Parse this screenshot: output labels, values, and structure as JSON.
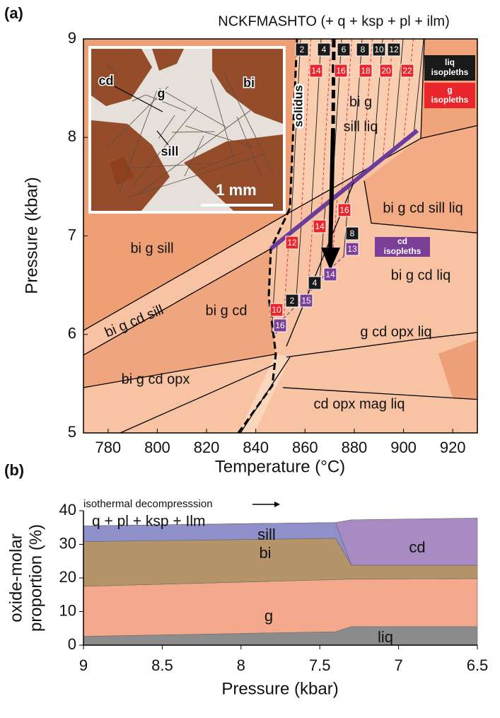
{
  "chart_data": [
    {
      "type": "phase-diagram",
      "panel_label": "(a)",
      "title": "NCKFMASHTO (+ q + ksp + pl + ilm)",
      "xlabel": "Temperature (°C)",
      "ylabel": "Pressure (kbar)",
      "xlim": [
        770,
        930
      ],
      "ylim": [
        5,
        9
      ],
      "xticks": [
        780,
        800,
        820,
        840,
        860,
        880,
        900,
        920
      ],
      "yticks": [
        5,
        6,
        7,
        8,
        9
      ],
      "fields": [
        "bi g sill",
        "bi g cd sill",
        "bi g cd",
        "bi g cd opx",
        "cd opx mag liq",
        "g cd opx liq",
        "bi g cd liq",
        "bi g cd sill liq",
        "bi g",
        "sill liq"
      ],
      "boundaries": [
        {
          "name": "solidus",
          "color": "#000000",
          "dashed": true,
          "x": [
            856.75,
            853.88,
            846.12,
            845.26,
            848.13,
            846.7,
            832.91
          ],
          "y": [
            9,
            7.28,
            6.87,
            6.38,
            5.8,
            5.48,
            5
          ]
        },
        {
          "color": "#000000",
          "x": [
            770,
            853.88,
            907.02
          ],
          "y": [
            6.04,
            7.24,
            7.99
          ]
        },
        {
          "color": "#000000",
          "x": [
            770,
            846.12
          ],
          "y": [
            5.79,
            6.87
          ]
        },
        {
          "color": "#6a3d9a",
          "x": [
            846.12,
            905.58
          ],
          "y": [
            6.87,
            8.07
          ]
        },
        {
          "color": "#000000",
          "x": [
            907.02,
            930
          ],
          "y": [
            7.99,
            8.12
          ]
        },
        {
          "color": "#000000",
          "x": [
            907.02,
            908.46
          ],
          "y": [
            7.99,
            9
          ]
        },
        {
          "color": "#000000",
          "x": [
            884.04,
            886.91,
            930
          ],
          "y": [
            7.56,
            7.13,
            7.03
          ]
        },
        {
          "color": "#000000",
          "x": [
            879.73,
            852.44
          ],
          "y": [
            7.54,
            5.88
          ]
        },
        {
          "color": "#000000",
          "x": [
            770,
            848.13
          ],
          "y": [
            5.46,
            5.8
          ]
        },
        {
          "color": "#000000",
          "x": [
            784.94,
            848.13
          ],
          "y": [
            5,
            5.7
          ]
        },
        {
          "color": "#000000",
          "x": [
            833.77,
            853.88
          ],
          "y": [
            5,
            5.77
          ]
        },
        {
          "color": "#000000",
          "x": [
            852.44,
            905.58,
            930
          ],
          "y": [
            5.77,
            5.95,
            6.02
          ]
        },
        {
          "color": "#000000",
          "x": [
            851.0,
            930
          ],
          "y": [
            5.46,
            5.34
          ]
        }
      ],
      "isopleths": [
        {
          "name": [
            "liq",
            "isopleths"
          ],
          "color": "#1a1a1a",
          "labels": [
            2,
            4,
            6,
            8,
            10,
            12,
            8,
            4,
            2
          ]
        },
        {
          "name": [
            "g",
            "isopleths"
          ],
          "color": "#e8262b",
          "labels": [
            14,
            16,
            18,
            20,
            22,
            16,
            14,
            12,
            10
          ]
        },
        {
          "name": [
            "cd",
            "isopleths"
          ],
          "color": "#7b3f98",
          "labels": [
            13,
            14,
            15,
            16
          ]
        }
      ],
      "inset": {
        "labels": [
          "cd",
          "g",
          "bi",
          "sill"
        ],
        "scale_bar": "1 mm"
      }
    },
    {
      "type": "area",
      "panel_label": "(b)",
      "annotation": "isothermal decompresssion",
      "top_label": "q + pl + ksp + Ilm",
      "xlabel": "Pressure (kbar)",
      "ylabel": [
        "oxide-molar",
        "proportion (%)"
      ],
      "xlim": [
        9,
        6.5
      ],
      "ylim": [
        0,
        40
      ],
      "xticks": [
        9,
        8.5,
        8,
        7.5,
        7,
        6.5
      ],
      "yticks": [
        0,
        10,
        20,
        30,
        40
      ],
      "x": [
        9,
        7.4,
        7.3,
        6.5
      ],
      "series": [
        {
          "name": "liq",
          "color": "#8c8c8c",
          "values": [
            2.6,
            4.0,
            5.5,
            5.5
          ]
        },
        {
          "name": "g",
          "color": "#f5a98c",
          "values": [
            14.9,
            15.5,
            14.2,
            14.3
          ]
        },
        {
          "name": "bi",
          "color": "#b5946a",
          "values": [
            13.3,
            12.3,
            4.1,
            4.0
          ]
        },
        {
          "name": "sill",
          "color": "#8f8fca",
          "values": [
            4.7,
            4.7,
            0,
            0
          ]
        },
        {
          "name": "cd",
          "color": "#a98bc4",
          "values": [
            0,
            0,
            13.5,
            14.0
          ]
        }
      ]
    }
  ]
}
